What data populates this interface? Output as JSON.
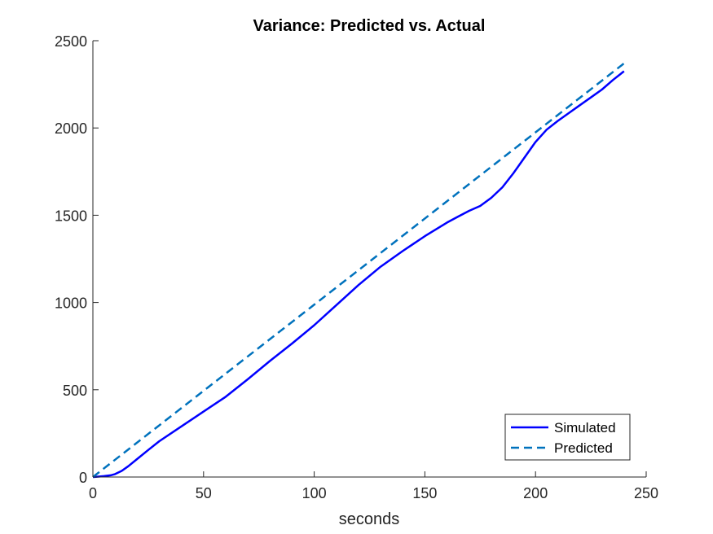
{
  "chart_data": {
    "type": "line",
    "title": "Variance: Predicted vs. Actual",
    "xlabel": "seconds",
    "ylabel": "",
    "xlim": [
      0,
      250
    ],
    "ylim": [
      0,
      2500
    ],
    "xticks": [
      0,
      50,
      100,
      150,
      200,
      250
    ],
    "yticks": [
      0,
      500,
      1000,
      1500,
      2000,
      2500
    ],
    "xtick_labels": [
      "0",
      "50",
      "100",
      "150",
      "200",
      "250"
    ],
    "ytick_labels": [
      "0",
      "500",
      "1000",
      "1500",
      "2000",
      "2500"
    ],
    "grid": false,
    "legend_position": "bottom-right",
    "series": [
      {
        "name": "Simulated",
        "style": "solid",
        "color": "#0000FF",
        "x": [
          0,
          2,
          5,
          8,
          10,
          13,
          16,
          20,
          25,
          30,
          40,
          50,
          60,
          70,
          80,
          90,
          100,
          110,
          120,
          130,
          140,
          150,
          160,
          165,
          170,
          175,
          180,
          185,
          190,
          195,
          200,
          205,
          210,
          215,
          220,
          225,
          230,
          235,
          240
        ],
        "y": [
          0,
          2,
          5,
          10,
          17,
          35,
          62,
          103,
          155,
          205,
          290,
          375,
          460,
          560,
          665,
          765,
          870,
          985,
          1100,
          1205,
          1295,
          1380,
          1458,
          1492,
          1525,
          1553,
          1600,
          1660,
          1740,
          1830,
          1920,
          1990,
          2040,
          2085,
          2130,
          2175,
          2220,
          2275,
          2325
        ]
      },
      {
        "name": "Predicted",
        "style": "dashed",
        "color": "#0072BD",
        "x": [
          0,
          240
        ],
        "y": [
          0,
          2370
        ]
      }
    ]
  }
}
